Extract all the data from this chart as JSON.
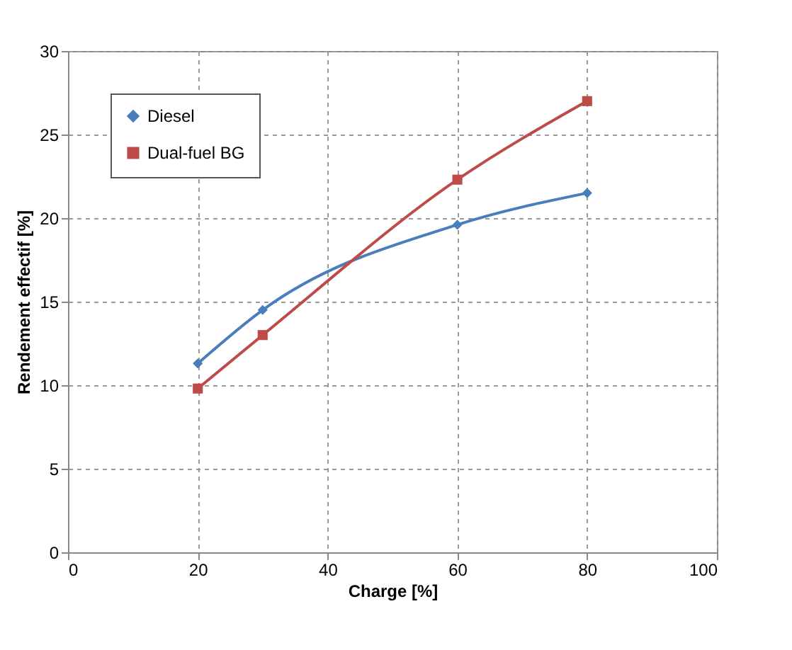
{
  "chart_data": {
    "type": "line",
    "xlabel": "Charge [%]",
    "ylabel": "Rendement effectif [%]",
    "x": [
      20,
      30,
      60,
      80
    ],
    "series": [
      {
        "name": "Diesel",
        "color": "#4a7ebb",
        "marker": "diamond",
        "values": [
          11.3,
          14.5,
          19.6,
          21.5
        ]
      },
      {
        "name": "Dual-fuel BG",
        "color": "#be4b48",
        "marker": "square",
        "values": [
          9.8,
          13.0,
          22.3,
          27.0
        ]
      }
    ],
    "xlim": [
      0,
      100
    ],
    "xticks": [
      0,
      20,
      40,
      60,
      80,
      100
    ],
    "ylim": [
      0,
      30
    ],
    "yticks": [
      0,
      5,
      10,
      15,
      20,
      25,
      30
    ],
    "grid": true,
    "legend": "top left",
    "line_style": "solid"
  }
}
